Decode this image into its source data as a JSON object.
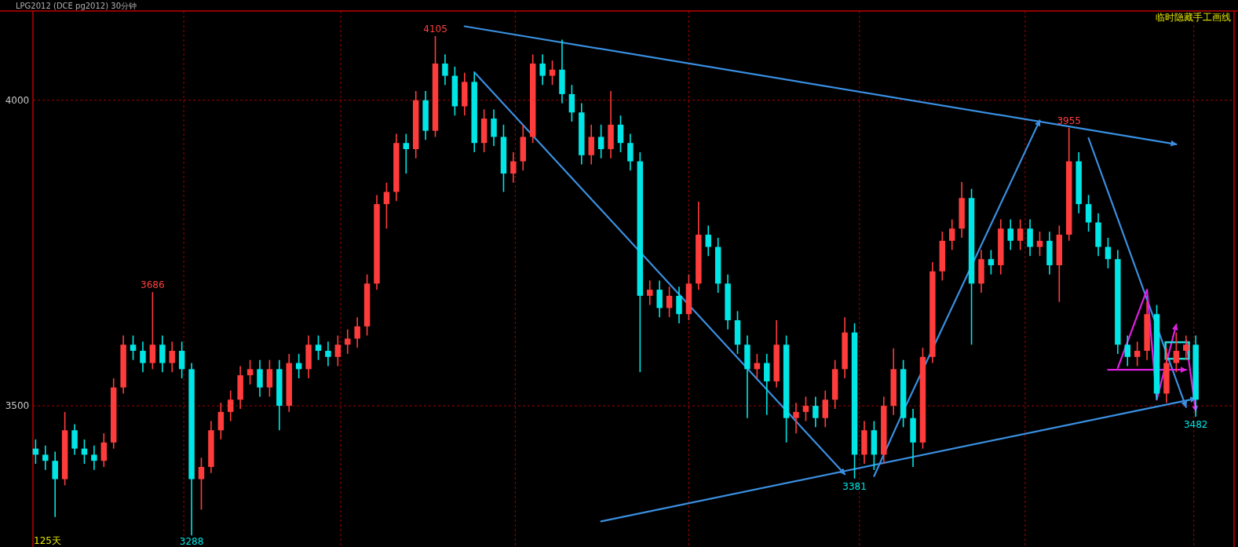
{
  "chart_data": {
    "type": "candlestick",
    "title": "LPG2012 (DCE pg2012) 30分钟",
    "annotations": [
      {
        "text": "4105",
        "y": 4105
      },
      {
        "text": "3686",
        "y": 3686
      },
      {
        "text": "3288",
        "y": 3288
      },
      {
        "text": "3381",
        "y": 3381
      },
      {
        "text": "3955",
        "y": 3955
      },
      {
        "text": "3482",
        "y": 3482
      },
      "125天",
      "临时隐藏手工画线"
    ],
    "categories": [
      null,
      null,
      null,
      null,
      null,
      null,
      null,
      null,
      null,
      null,
      null,
      null,
      null,
      null,
      null,
      null,
      null,
      null,
      null,
      null,
      null,
      null,
      null,
      null,
      null,
      null,
      null,
      null,
      null,
      null,
      null,
      null,
      null,
      null,
      null,
      null,
      null,
      null,
      null,
      null,
      null,
      null,
      null,
      null,
      null,
      null,
      null,
      null,
      null,
      null,
      null,
      null,
      null,
      null,
      null,
      null,
      null,
      null,
      null,
      null,
      null,
      null,
      null,
      null,
      null,
      null,
      null,
      null,
      null,
      null,
      null,
      null,
      null,
      null,
      null,
      null,
      null,
      null,
      null,
      null,
      null,
      null,
      null,
      null,
      null,
      null,
      null,
      null,
      null,
      null,
      null,
      null,
      null,
      null,
      null,
      null,
      null,
      null,
      null,
      null,
      null,
      null,
      null,
      null,
      null,
      null,
      null,
      null,
      null,
      null,
      null,
      null,
      null,
      null,
      null,
      null,
      null,
      null,
      null,
      null
    ],
    "ohlc": [
      [
        3430,
        3445,
        3405,
        3420
      ],
      [
        3420,
        3435,
        3395,
        3410
      ],
      [
        3410,
        3425,
        3318,
        3380
      ],
      [
        3380,
        3490,
        3370,
        3460
      ],
      [
        3460,
        3470,
        3420,
        3430
      ],
      [
        3430,
        3445,
        3405,
        3420
      ],
      [
        3420,
        3435,
        3395,
        3410
      ],
      [
        3410,
        3455,
        3400,
        3440
      ],
      [
        3440,
        3545,
        3430,
        3530
      ],
      [
        3530,
        3615,
        3520,
        3600
      ],
      [
        3600,
        3615,
        3575,
        3590
      ],
      [
        3590,
        3605,
        3555,
        3570
      ],
      [
        3570,
        3686,
        3560,
        3600
      ],
      [
        3600,
        3615,
        3555,
        3570
      ],
      [
        3570,
        3605,
        3555,
        3590
      ],
      [
        3590,
        3605,
        3545,
        3560
      ],
      [
        3560,
        3570,
        3288,
        3380
      ],
      [
        3380,
        3415,
        3330,
        3400
      ],
      [
        3400,
        3475,
        3390,
        3460
      ],
      [
        3460,
        3505,
        3445,
        3490
      ],
      [
        3490,
        3525,
        3475,
        3510
      ],
      [
        3510,
        3565,
        3495,
        3550
      ],
      [
        3550,
        3575,
        3535,
        3560
      ],
      [
        3560,
        3575,
        3515,
        3530
      ],
      [
        3530,
        3575,
        3515,
        3560
      ],
      [
        3560,
        3575,
        3460,
        3500
      ],
      [
        3500,
        3585,
        3490,
        3570
      ],
      [
        3570,
        3585,
        3545,
        3560
      ],
      [
        3560,
        3615,
        3545,
        3600
      ],
      [
        3600,
        3615,
        3575,
        3590
      ],
      [
        3590,
        3605,
        3565,
        3580
      ],
      [
        3580,
        3615,
        3565,
        3600
      ],
      [
        3600,
        3625,
        3585,
        3610
      ],
      [
        3610,
        3645,
        3595,
        3630
      ],
      [
        3630,
        3715,
        3615,
        3700
      ],
      [
        3700,
        3845,
        3690,
        3830
      ],
      [
        3830,
        3865,
        3790,
        3850
      ],
      [
        3850,
        3945,
        3835,
        3930
      ],
      [
        3930,
        3945,
        3880,
        3920
      ],
      [
        3920,
        4015,
        3905,
        4000
      ],
      [
        4000,
        4015,
        3935,
        3950
      ],
      [
        3950,
        4105,
        3940,
        4060
      ],
      [
        4060,
        4075,
        4025,
        4040
      ],
      [
        4040,
        4055,
        3975,
        3990
      ],
      [
        3990,
        4045,
        3975,
        4030
      ],
      [
        4030,
        4045,
        3915,
        3930
      ],
      [
        3930,
        3985,
        3915,
        3970
      ],
      [
        3970,
        3985,
        3925,
        3940
      ],
      [
        3940,
        3960,
        3850,
        3880
      ],
      [
        3880,
        3915,
        3865,
        3900
      ],
      [
        3900,
        3960,
        3885,
        3940
      ],
      [
        3940,
        4075,
        3930,
        4060
      ],
      [
        4060,
        4075,
        4025,
        4040
      ],
      [
        4040,
        4065,
        4025,
        4050
      ],
      [
        4050,
        4099,
        3995,
        4010
      ],
      [
        4010,
        4025,
        3965,
        3980
      ],
      [
        3980,
        3995,
        3895,
        3910
      ],
      [
        3910,
        3960,
        3895,
        3940
      ],
      [
        3940,
        3960,
        3905,
        3920
      ],
      [
        3920,
        4015,
        3905,
        3960
      ],
      [
        3960,
        3975,
        3915,
        3930
      ],
      [
        3930,
        3945,
        3885,
        3900
      ],
      [
        3900,
        3915,
        3555,
        3680
      ],
      [
        3680,
        3705,
        3665,
        3690
      ],
      [
        3690,
        3705,
        3645,
        3660
      ],
      [
        3660,
        3695,
        3645,
        3680
      ],
      [
        3680,
        3695,
        3635,
        3650
      ],
      [
        3650,
        3715,
        3640,
        3700
      ],
      [
        3700,
        3834,
        3690,
        3780
      ],
      [
        3780,
        3795,
        3745,
        3760
      ],
      [
        3760,
        3775,
        3685,
        3700
      ],
      [
        3700,
        3715,
        3625,
        3640
      ],
      [
        3640,
        3655,
        3585,
        3600
      ],
      [
        3600,
        3615,
        3480,
        3560
      ],
      [
        3560,
        3585,
        3545,
        3570
      ],
      [
        3570,
        3585,
        3485,
        3540
      ],
      [
        3540,
        3640,
        3530,
        3600
      ],
      [
        3600,
        3615,
        3440,
        3480
      ],
      [
        3480,
        3505,
        3455,
        3490
      ],
      [
        3490,
        3515,
        3475,
        3500
      ],
      [
        3500,
        3515,
        3465,
        3480
      ],
      [
        3480,
        3525,
        3465,
        3510
      ],
      [
        3510,
        3575,
        3495,
        3560
      ],
      [
        3560,
        3645,
        3545,
        3620
      ],
      [
        3620,
        3635,
        3381,
        3420
      ],
      [
        3420,
        3475,
        3405,
        3460
      ],
      [
        3460,
        3475,
        3395,
        3420
      ],
      [
        3420,
        3515,
        3405,
        3500
      ],
      [
        3500,
        3594,
        3485,
        3560
      ],
      [
        3560,
        3575,
        3465,
        3480
      ],
      [
        3480,
        3495,
        3400,
        3440
      ],
      [
        3440,
        3595,
        3430,
        3580
      ],
      [
        3580,
        3735,
        3570,
        3720
      ],
      [
        3720,
        3785,
        3705,
        3770
      ],
      [
        3770,
        3805,
        3755,
        3790
      ],
      [
        3790,
        3866,
        3775,
        3840
      ],
      [
        3840,
        3855,
        3600,
        3700
      ],
      [
        3700,
        3755,
        3685,
        3740
      ],
      [
        3740,
        3755,
        3715,
        3730
      ],
      [
        3730,
        3805,
        3715,
        3790
      ],
      [
        3790,
        3805,
        3755,
        3770
      ],
      [
        3770,
        3805,
        3755,
        3790
      ],
      [
        3790,
        3805,
        3745,
        3760
      ],
      [
        3760,
        3785,
        3745,
        3770
      ],
      [
        3770,
        3785,
        3715,
        3730
      ],
      [
        3730,
        3795,
        3670,
        3780
      ],
      [
        3780,
        3955,
        3770,
        3900
      ],
      [
        3900,
        3915,
        3815,
        3830
      ],
      [
        3830,
        3845,
        3785,
        3800
      ],
      [
        3800,
        3815,
        3745,
        3760
      ],
      [
        3760,
        3775,
        3725,
        3740
      ],
      [
        3740,
        3755,
        3585,
        3600
      ],
      [
        3600,
        3615,
        3565,
        3580
      ],
      [
        3580,
        3605,
        3565,
        3590
      ],
      [
        3590,
        3671,
        3575,
        3650
      ],
      [
        3650,
        3665,
        3510,
        3520
      ],
      [
        3520,
        3595,
        3505,
        3570
      ],
      [
        3570,
        3620,
        3555,
        3590
      ],
      [
        3590,
        3615,
        3575,
        3600
      ],
      [
        3600,
        3615,
        3482,
        3510
      ]
    ],
    "colors": [
      "#00e6e6",
      "#00e6e6",
      "#00e6e6",
      "#ff3c3c",
      "#00e6e6",
      "#00e6e6",
      "#00e6e6",
      "#ff3c3c",
      "#ff3c3c",
      "#ff3c3c",
      "#00e6e6",
      "#00e6e6",
      "#ff3c3c",
      "#00e6e6",
      "#ff3c3c",
      "#00e6e6",
      "#00e6e6",
      "#ff3c3c",
      "#ff3c3c",
      "#ff3c3c",
      "#ff3c3c",
      "#ff3c3c",
      "#ff3c3c",
      "#00e6e6",
      "#ff3c3c",
      "#00e6e6",
      "#ff3c3c",
      "#00e6e6",
      "#ff3c3c",
      "#00e6e6",
      "#00e6e6",
      "#ff3c3c",
      "#ff3c3c",
      "#ff3c3c",
      "#ff3c3c",
      "#ff3c3c",
      "#ff3c3c",
      "#ff3c3c",
      "#00e6e6",
      "#ff3c3c",
      "#00e6e6",
      "#ff3c3c",
      "#00e6e6",
      "#00e6e6",
      "#ff3c3c",
      "#00e6e6",
      "#ff3c3c",
      "#00e6e6",
      "#00e6e6",
      "#ff3c3c",
      "#ff3c3c",
      "#ff3c3c",
      "#00e6e6",
      "#ff3c3c",
      "#00e6e6",
      "#00e6e6",
      "#00e6e6",
      "#ff3c3c",
      "#00e6e6",
      "#ff3c3c",
      "#00e6e6",
      "#00e6e6",
      "#00e6e6",
      "#ff3c3c",
      "#00e6e6",
      "#ff3c3c",
      "#00e6e6",
      "#ff3c3c",
      "#ff3c3c",
      "#00e6e6",
      "#00e6e6",
      "#00e6e6",
      "#00e6e6",
      "#00e6e6",
      "#ff3c3c",
      "#00e6e6",
      "#ff3c3c",
      "#00e6e6",
      "#ff3c3c",
      "#ff3c3c",
      "#00e6e6",
      "#ff3c3c",
      "#ff3c3c",
      "#ff3c3c",
      "#00e6e6",
      "#ff3c3c",
      "#00e6e6",
      "#ff3c3c",
      "#ff3c3c",
      "#00e6e6",
      "#00e6e6",
      "#ff3c3c",
      "#ff3c3c",
      "#ff3c3c",
      "#ff3c3c",
      "#ff3c3c",
      "#00e6e6",
      "#ff3c3c",
      "#00e6e6",
      "#ff3c3c",
      "#00e6e6",
      "#ff3c3c",
      "#00e6e6",
      "#ff3c3c",
      "#00e6e6",
      "#ff3c3c",
      "#ff3c3c",
      "#00e6e6",
      "#00e6e6",
      "#00e6e6",
      "#00e6e6",
      "#00e6e6",
      "#00e6e6",
      "#ff3c3c",
      "#ff3c3c",
      "#00e6e6",
      "#ff3c3c",
      "#ff3c3c",
      "#ff3c3c",
      "#00e6e6"
    ],
    "series": [
      {
        "type": "line",
        "color": "#3a8fe0",
        "values": [
          null,
          null,
          null,
          null,
          null,
          null,
          null,
          null,
          null,
          null,
          null,
          null,
          null,
          null,
          null,
          null,
          null,
          null,
          null,
          null,
          null,
          null,
          null,
          null,
          null,
          null,
          null,
          null,
          null,
          null,
          null,
          null,
          null,
          null,
          null,
          null,
          null,
          null,
          null,
          null,
          null,
          null,
          null,
          null,
          4121,
          null,
          null,
          null,
          null,
          null,
          null,
          null,
          null,
          null,
          null,
          null,
          null,
          null,
          null,
          null,
          null,
          null,
          null,
          null,
          null,
          null,
          null,
          null,
          null,
          null,
          null,
          null,
          null,
          null,
          null,
          null,
          null,
          null,
          null,
          null,
          null,
          null,
          null,
          null,
          null,
          null,
          null,
          null,
          null,
          null,
          null,
          null,
          null,
          null,
          null,
          null,
          null,
          null,
          null,
          null,
          null,
          null,
          null,
          null,
          null,
          null,
          null,
          null,
          null,
          null,
          null,
          null,
          null,
          null,
          null,
          null,
          null,
          3928,
          null,
          null
        ]
      },
      {
        "type": "line",
        "color": "#3a8fe0",
        "values": [
          null,
          null,
          null,
          null,
          null,
          null,
          null,
          null,
          null,
          null,
          null,
          null,
          null,
          null,
          null,
          null,
          null,
          null,
          null,
          null,
          null,
          null,
          null,
          null,
          null,
          null,
          null,
          null,
          null,
          null,
          null,
          null,
          null,
          null,
          null,
          null,
          null,
          null,
          null,
          null,
          null,
          null,
          null,
          null,
          null,
          4046,
          null,
          null,
          null,
          null,
          null,
          null,
          null,
          null,
          null,
          null,
          null,
          null,
          null,
          null,
          null,
          null,
          null,
          null,
          null,
          null,
          null,
          null,
          null,
          null,
          null,
          null,
          null,
          null,
          null,
          null,
          null,
          null,
          null,
          null,
          null,
          null,
          null,
          3388,
          null,
          null,
          null,
          null,
          null,
          null,
          null,
          null,
          null,
          null,
          null,
          null,
          null,
          null,
          null,
          null,
          null,
          null,
          null,
          null,
          null,
          null,
          null,
          null,
          null,
          null,
          null,
          null,
          null,
          null,
          null,
          null,
          null,
          null,
          null,
          null
        ]
      },
      {
        "type": "line",
        "color": "#3a8fe0",
        "values": [
          null,
          null,
          null,
          null,
          null,
          null,
          null,
          null,
          null,
          null,
          null,
          null,
          null,
          null,
          null,
          null,
          null,
          null,
          null,
          null,
          null,
          null,
          null,
          null,
          null,
          null,
          null,
          null,
          null,
          null,
          null,
          null,
          null,
          null,
          null,
          null,
          null,
          null,
          null,
          null,
          null,
          null,
          null,
          null,
          null,
          null,
          null,
          null,
          null,
          null,
          null,
          null,
          null,
          null,
          null,
          null,
          null,
          null,
          3311,
          null,
          null,
          null,
          null,
          null,
          null,
          null,
          null,
          null,
          null,
          null,
          null,
          null,
          null,
          null,
          null,
          null,
          null,
          null,
          null,
          null,
          null,
          null,
          null,
          null,
          null,
          null,
          null,
          null,
          null,
          null,
          null,
          null,
          null,
          null,
          null,
          null,
          null,
          null,
          null,
          null,
          null,
          null,
          null,
          null,
          null,
          null,
          null,
          null,
          null,
          null,
          null,
          null,
          null,
          null,
          null,
          null,
          null,
          null,
          null,
          3512
        ]
      },
      {
        "type": "line",
        "color": "#3a8fe0",
        "values": [
          null,
          null,
          null,
          null,
          null,
          null,
          null,
          null,
          null,
          null,
          null,
          null,
          null,
          null,
          null,
          null,
          null,
          null,
          null,
          null,
          null,
          null,
          null,
          null,
          null,
          null,
          null,
          null,
          null,
          null,
          null,
          null,
          null,
          null,
          null,
          null,
          null,
          null,
          null,
          null,
          null,
          null,
          null,
          null,
          null,
          null,
          null,
          null,
          null,
          null,
          null,
          null,
          null,
          null,
          null,
          null,
          null,
          null,
          null,
          null,
          null,
          null,
          null,
          null,
          null,
          null,
          null,
          null,
          null,
          null,
          null,
          null,
          null,
          null,
          null,
          null,
          null,
          null,
          null,
          null,
          null,
          null,
          null,
          null,
          null,
          null,
          3385,
          null,
          null,
          3491,
          null,
          null,
          null,
          null,
          null,
          null,
          null,
          null,
          null,
          null,
          null,
          null,
          null,
          3967,
          null,
          null,
          null,
          null,
          null,
          null,
          null,
          null,
          null,
          null,
          null,
          null,
          null,
          null,
          null,
          null
        ]
      },
      {
        "type": "line",
        "color": "#3a8fe0",
        "values": [
          null,
          null,
          null,
          null,
          null,
          null,
          null,
          null,
          null,
          null,
          null,
          null,
          null,
          null,
          null,
          null,
          null,
          null,
          null,
          null,
          null,
          null,
          null,
          null,
          null,
          null,
          null,
          null,
          null,
          null,
          null,
          null,
          null,
          null,
          null,
          null,
          null,
          null,
          null,
          null,
          null,
          null,
          null,
          null,
          null,
          null,
          null,
          null,
          null,
          null,
          null,
          null,
          null,
          null,
          null,
          null,
          null,
          null,
          null,
          null,
          null,
          null,
          null,
          null,
          null,
          null,
          null,
          null,
          null,
          null,
          null,
          null,
          null,
          null,
          null,
          null,
          null,
          null,
          null,
          null,
          null,
          null,
          null,
          null,
          null,
          null,
          null,
          null,
          null,
          null,
          null,
          null,
          null,
          null,
          null,
          null,
          null,
          null,
          null,
          null,
          null,
          null,
          null,
          null,
          null,
          null,
          null,
          null,
          3938,
          null,
          null,
          null,
          null,
          null,
          null,
          null,
          null,
          null,
          3498,
          null
        ]
      },
      {
        "type": "line",
        "color": "#e020e0",
        "values": [
          null,
          null,
          null,
          null,
          null,
          null,
          null,
          null,
          null,
          null,
          null,
          null,
          null,
          null,
          null,
          null,
          null,
          null,
          null,
          null,
          null,
          null,
          null,
          null,
          null,
          null,
          null,
          null,
          null,
          null,
          null,
          null,
          null,
          null,
          null,
          null,
          null,
          null,
          null,
          null,
          null,
          null,
          null,
          null,
          null,
          null,
          null,
          null,
          null,
          null,
          null,
          null,
          null,
          null,
          null,
          null,
          null,
          null,
          null,
          null,
          null,
          null,
          null,
          null,
          null,
          null,
          null,
          null,
          null,
          null,
          null,
          null,
          null,
          null,
          null,
          null,
          null,
          null,
          null,
          null,
          null,
          null,
          null,
          null,
          null,
          null,
          null,
          null,
          null,
          null,
          null,
          null,
          null,
          null,
          null,
          null,
          null,
          null,
          null,
          null,
          null,
          null,
          null,
          null,
          null,
          null,
          null,
          null,
          null,
          null,
          null,
          3562,
          null,
          null,
          3690,
          3510,
          null,
          3633,
          null,
          null
        ]
      },
      {
        "type": "line",
        "color": "#e020e0",
        "values": [
          null,
          null,
          null,
          null,
          null,
          null,
          null,
          null,
          null,
          null,
          null,
          null,
          null,
          null,
          null,
          null,
          null,
          null,
          null,
          null,
          null,
          null,
          null,
          null,
          null,
          null,
          null,
          null,
          null,
          null,
          null,
          null,
          null,
          null,
          null,
          null,
          null,
          null,
          null,
          null,
          null,
          null,
          null,
          null,
          null,
          null,
          null,
          null,
          null,
          null,
          null,
          null,
          null,
          null,
          null,
          null,
          null,
          null,
          null,
          null,
          null,
          null,
          null,
          null,
          null,
          null,
          null,
          null,
          null,
          null,
          null,
          null,
          null,
          null,
          null,
          null,
          null,
          null,
          null,
          null,
          null,
          null,
          null,
          null,
          null,
          null,
          null,
          null,
          null,
          null,
          null,
          null,
          null,
          null,
          null,
          null,
          null,
          null,
          null,
          null,
          null,
          null,
          null,
          null,
          null,
          null,
          null,
          null,
          null,
          null,
          null,
          null,
          null,
          null,
          null,
          null,
          null,
          null,
          3607,
          3491
        ]
      },
      {
        "type": "line",
        "color": "#e020e0",
        "values": [
          null,
          null,
          null,
          null,
          null,
          null,
          null,
          null,
          null,
          null,
          null,
          null,
          null,
          null,
          null,
          null,
          null,
          null,
          null,
          null,
          null,
          null,
          null,
          null,
          null,
          null,
          null,
          null,
          null,
          null,
          null,
          null,
          null,
          null,
          null,
          null,
          null,
          null,
          null,
          null,
          null,
          null,
          null,
          null,
          null,
          null,
          null,
          null,
          null,
          null,
          null,
          null,
          null,
          null,
          null,
          null,
          null,
          null,
          null,
          null,
          null,
          null,
          null,
          null,
          null,
          null,
          null,
          null,
          null,
          null,
          null,
          null,
          null,
          null,
          null,
          null,
          null,
          null,
          null,
          null,
          null,
          null,
          null,
          null,
          null,
          null,
          null,
          null,
          null,
          null,
          null,
          null,
          null,
          null,
          null,
          null,
          null,
          null,
          null,
          null,
          null,
          null,
          null,
          null,
          null,
          null,
          null,
          null,
          null,
          null,
          3559,
          null,
          null,
          null,
          null,
          null,
          null,
          null,
          3559,
          null
        ]
      }
    ],
    "ylim": [
      3269,
      4146
    ],
    "yticks": [
      3500,
      4000
    ],
    "grid": true,
    "marker": "none",
    "line_style": "solid"
  }
}
